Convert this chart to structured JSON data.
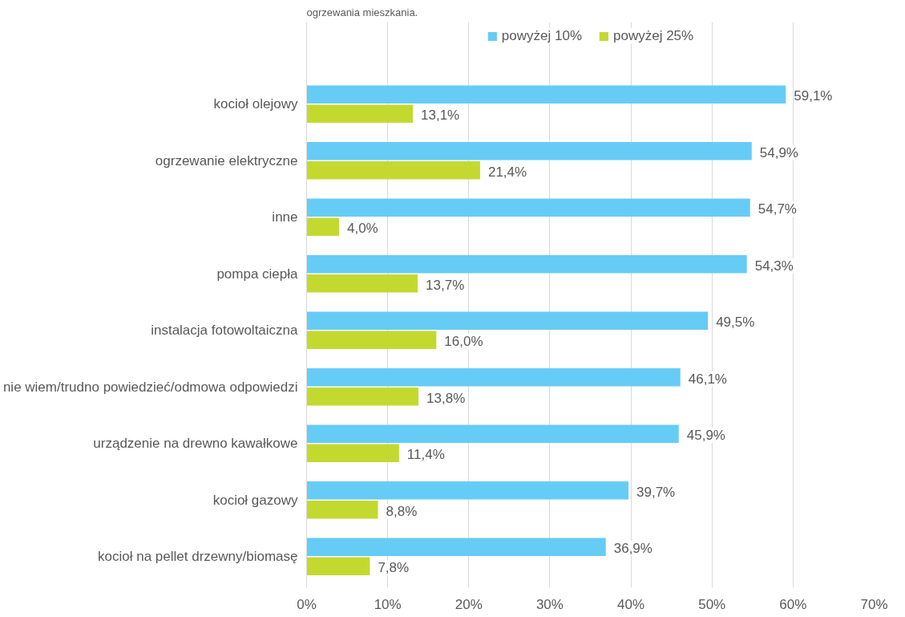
{
  "chart_data": {
    "type": "bar",
    "orientation": "horizontal",
    "title": "ogrzewania mieszkania.",
    "categories": [
      "kocioł olejowy",
      "ogrzewanie elektryczne",
      "inne",
      "pompa ciepła",
      "instalacja fotowoltaiczna",
      "nie wiem/trudno powiedzieć/odmowa odpowiedzi",
      "urządzenie na drewno kawałkowe",
      "kocioł gazowy",
      "kocioł na pellet drzewny/biomasę"
    ],
    "series": [
      {
        "name": "powyżej 10%",
        "color": "#66ccf5",
        "values": [
          59.1,
          54.9,
          54.7,
          54.3,
          49.5,
          46.1,
          45.9,
          39.7,
          36.9
        ],
        "value_labels": [
          "59,1%",
          "54,9%",
          "54,7%",
          "54,3%",
          "49,5%",
          "46,1%",
          "45,9%",
          "39,7%",
          "36,9%"
        ]
      },
      {
        "name": "powyżej 25%",
        "color": "#c4d930",
        "values": [
          13.1,
          21.4,
          4.0,
          13.7,
          16.0,
          13.8,
          11.4,
          8.8,
          7.8
        ],
        "value_labels": [
          "13,1%",
          "21,4%",
          "4,0%",
          "13,7%",
          "16,0%",
          "13,8%",
          "11,4%",
          "8,8%",
          "7,8%"
        ]
      }
    ],
    "xlim": [
      0,
      70
    ],
    "xticks": [
      {
        "value": 0,
        "label": "0%"
      },
      {
        "value": 10,
        "label": "10%"
      },
      {
        "value": 20,
        "label": "20%"
      },
      {
        "value": 30,
        "label": "30%"
      },
      {
        "value": 40,
        "label": "40%"
      },
      {
        "value": 50,
        "label": "50%"
      },
      {
        "value": 60,
        "label": "60%"
      },
      {
        "value": 70,
        "label": "70%"
      }
    ],
    "grid": "x",
    "legend": "top"
  }
}
